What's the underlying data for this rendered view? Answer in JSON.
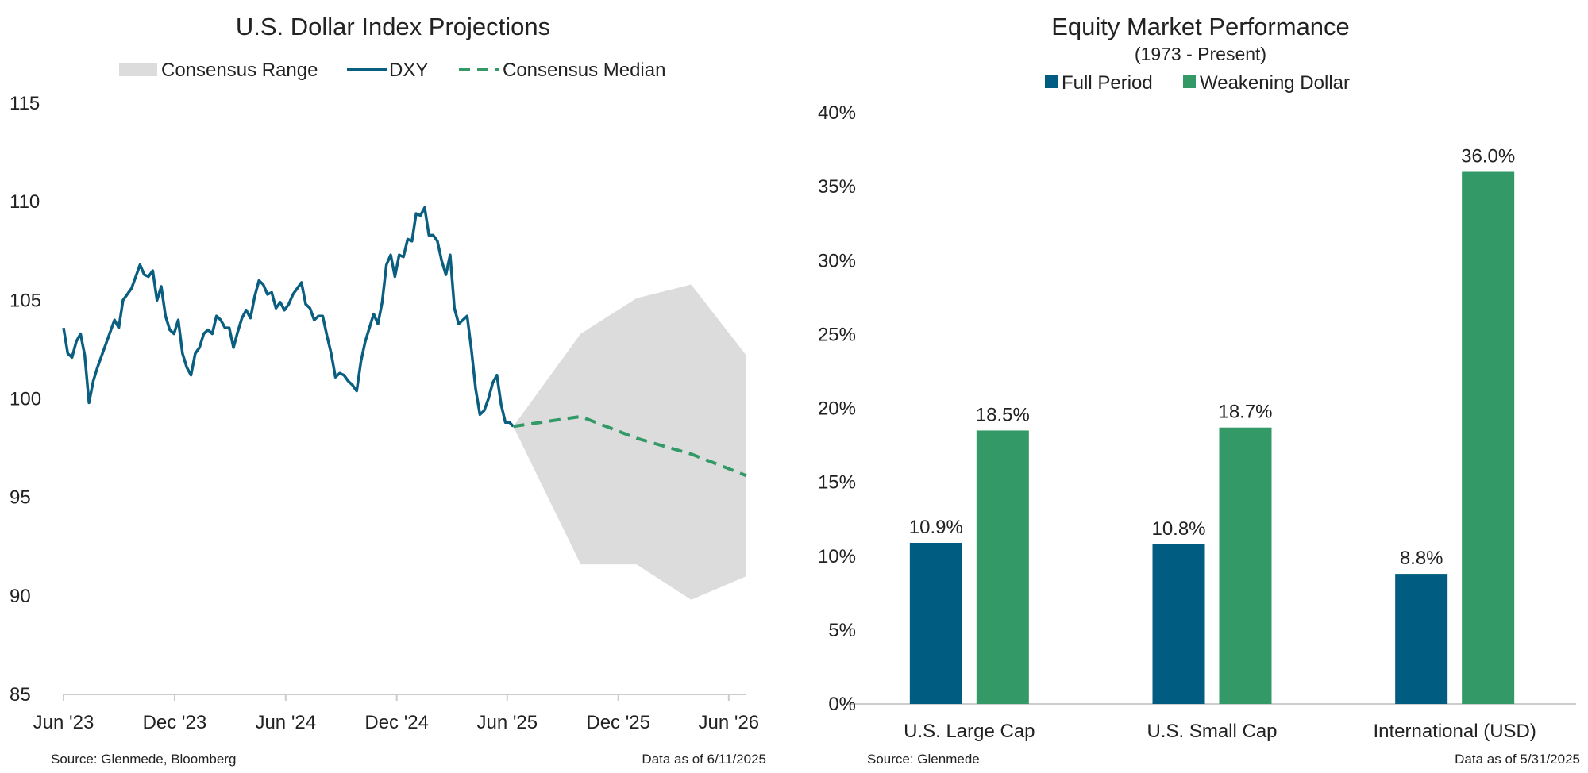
{
  "colors": {
    "dxy": "#0a5e80",
    "median": "#339966",
    "range": "#dcdcdc",
    "full_period": "#005c80",
    "weakening_dollar": "#339966",
    "axis": "#cccccc"
  },
  "chart_data": [
    {
      "type": "line",
      "title": "U.S. Dollar Index Projections",
      "legend": [
        "Consensus Range",
        "DXY",
        "Consensus Median"
      ],
      "legend_position": "top-center",
      "ylim": [
        85,
        115
      ],
      "yticks": [
        "115",
        "110",
        "105",
        "100",
        "95",
        "90",
        "85"
      ],
      "ytick_values": [
        115,
        110,
        105,
        100,
        95,
        90,
        85
      ],
      "xlim": [
        "2023-06-01",
        "2026-06-30"
      ],
      "xticks": [
        "Jun '23",
        "Dec '23",
        "Jun '24",
        "Dec '24",
        "Jun '25",
        "Dec '25",
        "Jun '26"
      ],
      "xtick_dates": [
        "2023-06-01",
        "2023-12-01",
        "2024-06-01",
        "2024-12-01",
        "2025-06-01",
        "2025-12-01",
        "2026-06-01"
      ],
      "grid": false,
      "series": [
        {
          "name": "DXY",
          "x": [
            "2023-06-01",
            "2023-06-08",
            "2023-06-15",
            "2023-06-22",
            "2023-06-29",
            "2023-07-06",
            "2023-07-13",
            "2023-07-20",
            "2023-07-27",
            "2023-08-03",
            "2023-08-10",
            "2023-08-17",
            "2023-08-24",
            "2023-08-31",
            "2023-09-07",
            "2023-09-14",
            "2023-09-21",
            "2023-09-28",
            "2023-10-05",
            "2023-10-12",
            "2023-10-19",
            "2023-10-26",
            "2023-11-02",
            "2023-11-09",
            "2023-11-16",
            "2023-11-23",
            "2023-11-30",
            "2023-12-07",
            "2023-12-14",
            "2023-12-21",
            "2023-12-28",
            "2024-01-04",
            "2024-01-11",
            "2024-01-18",
            "2024-01-25",
            "2024-02-01",
            "2024-02-08",
            "2024-02-15",
            "2024-02-22",
            "2024-02-29",
            "2024-03-07",
            "2024-03-14",
            "2024-03-21",
            "2024-03-28",
            "2024-04-04",
            "2024-04-11",
            "2024-04-18",
            "2024-04-25",
            "2024-05-02",
            "2024-05-09",
            "2024-05-16",
            "2024-05-23",
            "2024-05-30",
            "2024-06-06",
            "2024-06-13",
            "2024-06-20",
            "2024-06-27",
            "2024-07-04",
            "2024-07-11",
            "2024-07-18",
            "2024-07-25",
            "2024-08-01",
            "2024-08-08",
            "2024-08-15",
            "2024-08-22",
            "2024-08-29",
            "2024-09-05",
            "2024-09-12",
            "2024-09-19",
            "2024-09-26",
            "2024-10-03",
            "2024-10-10",
            "2024-10-17",
            "2024-10-24",
            "2024-10-31",
            "2024-11-07",
            "2024-11-14",
            "2024-11-21",
            "2024-11-28",
            "2024-12-05",
            "2024-12-12",
            "2024-12-19",
            "2024-12-26",
            "2025-01-02",
            "2025-01-09",
            "2025-01-16",
            "2025-01-23",
            "2025-01-30",
            "2025-02-06",
            "2025-02-13",
            "2025-02-20",
            "2025-02-27",
            "2025-03-06",
            "2025-03-13",
            "2025-03-20",
            "2025-03-27",
            "2025-04-03",
            "2025-04-10",
            "2025-04-17",
            "2025-04-24",
            "2025-05-01",
            "2025-05-08",
            "2025-05-15",
            "2025-05-22",
            "2025-05-29",
            "2025-06-05",
            "2025-06-11"
          ],
          "y": [
            103.6,
            102.3,
            102.1,
            102.9,
            103.3,
            102.2,
            99.8,
            100.9,
            101.6,
            102.2,
            102.8,
            103.4,
            104.0,
            103.6,
            105.0,
            105.3,
            105.6,
            106.2,
            106.8,
            106.3,
            106.2,
            106.5,
            105.0,
            105.7,
            104.2,
            103.5,
            103.3,
            104.0,
            102.3,
            101.6,
            101.2,
            102.3,
            102.6,
            103.3,
            103.5,
            103.3,
            104.2,
            104.0,
            103.6,
            103.6,
            102.6,
            103.4,
            104.1,
            104.5,
            104.1,
            105.2,
            106.0,
            105.8,
            105.3,
            105.4,
            104.6,
            104.9,
            104.5,
            104.8,
            105.3,
            105.6,
            105.9,
            104.8,
            104.6,
            104.0,
            104.2,
            104.2,
            103.2,
            102.3,
            101.1,
            101.3,
            101.2,
            100.9,
            100.7,
            100.4,
            101.9,
            102.9,
            103.6,
            104.3,
            103.8,
            104.9,
            106.8,
            107.3,
            106.2,
            107.3,
            107.2,
            108.1,
            108.0,
            109.4,
            109.3,
            109.7,
            108.3,
            108.3,
            108.0,
            107.0,
            106.3,
            107.3,
            104.6,
            103.8,
            104.0,
            104.2,
            102.5,
            100.5,
            99.2,
            99.4,
            100.0,
            100.8,
            101.2,
            99.7,
            98.8,
            98.8,
            98.6
          ]
        },
        {
          "name": "Consensus Median",
          "x": [
            "2025-06-11",
            "2025-09-30",
            "2025-12-31",
            "2026-03-31",
            "2026-06-30"
          ],
          "y": [
            98.6,
            99.1,
            98.0,
            97.2,
            96.1
          ]
        },
        {
          "name": "Consensus Range",
          "x": [
            "2025-06-11",
            "2025-09-30",
            "2025-12-31",
            "2026-03-31",
            "2026-06-30"
          ],
          "high": [
            98.6,
            103.3,
            105.1,
            105.8,
            102.2
          ],
          "low": [
            98.6,
            91.6,
            91.6,
            89.8,
            91.0
          ]
        }
      ],
      "source": "Source: Glenmede, Bloomberg",
      "date_note": "Data as of 6/11/2025"
    },
    {
      "type": "bar",
      "title": "Equity Market Performance",
      "subtitle": "(1973 - Present)",
      "legend": [
        "Full Period",
        "Weakening Dollar"
      ],
      "legend_position": "top-center",
      "categories": [
        "U.S. Large Cap",
        "U.S. Small Cap",
        "International (USD)"
      ],
      "series": [
        {
          "name": "Full Period",
          "values": [
            10.9,
            10.8,
            8.8
          ],
          "labels": [
            "10.9%",
            "10.8%",
            "8.8%"
          ]
        },
        {
          "name": "Weakening Dollar",
          "values": [
            18.5,
            18.7,
            36.0
          ],
          "labels": [
            "18.5%",
            "18.7%",
            "36.0%"
          ]
        }
      ],
      "ylim": [
        0,
        40
      ],
      "yticks": [
        "40%",
        "35%",
        "30%",
        "25%",
        "20%",
        "15%",
        "10%",
        "5%",
        "0%"
      ],
      "ytick_values": [
        40,
        35,
        30,
        25,
        20,
        15,
        10,
        5,
        0
      ],
      "grid": false,
      "source": "Source: Glenmede",
      "date_note": "Data as of 5/31/2025"
    }
  ]
}
